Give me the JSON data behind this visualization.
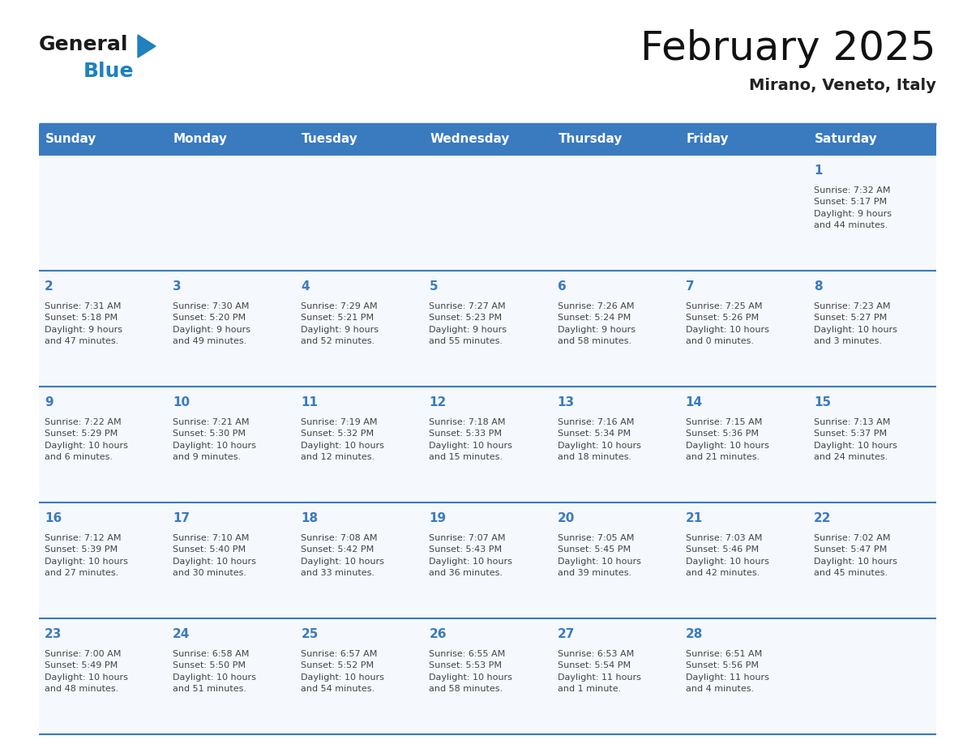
{
  "title": "February 2025",
  "subtitle": "Mirano, Veneto, Italy",
  "header_bg_color": "#3a7abf",
  "header_text_color": "#ffffff",
  "cell_bg_color": "#f5f8fc",
  "day_number_color": "#3a7abf",
  "text_color": "#444444",
  "border_color": "#3a7abf",
  "separator_color": "#3a7abf",
  "days_of_week": [
    "Sunday",
    "Monday",
    "Tuesday",
    "Wednesday",
    "Thursday",
    "Friday",
    "Saturday"
  ],
  "weeks": [
    [
      {
        "day": null,
        "info": null
      },
      {
        "day": null,
        "info": null
      },
      {
        "day": null,
        "info": null
      },
      {
        "day": null,
        "info": null
      },
      {
        "day": null,
        "info": null
      },
      {
        "day": null,
        "info": null
      },
      {
        "day": 1,
        "info": "Sunrise: 7:32 AM\nSunset: 5:17 PM\nDaylight: 9 hours\nand 44 minutes."
      }
    ],
    [
      {
        "day": 2,
        "info": "Sunrise: 7:31 AM\nSunset: 5:18 PM\nDaylight: 9 hours\nand 47 minutes."
      },
      {
        "day": 3,
        "info": "Sunrise: 7:30 AM\nSunset: 5:20 PM\nDaylight: 9 hours\nand 49 minutes."
      },
      {
        "day": 4,
        "info": "Sunrise: 7:29 AM\nSunset: 5:21 PM\nDaylight: 9 hours\nand 52 minutes."
      },
      {
        "day": 5,
        "info": "Sunrise: 7:27 AM\nSunset: 5:23 PM\nDaylight: 9 hours\nand 55 minutes."
      },
      {
        "day": 6,
        "info": "Sunrise: 7:26 AM\nSunset: 5:24 PM\nDaylight: 9 hours\nand 58 minutes."
      },
      {
        "day": 7,
        "info": "Sunrise: 7:25 AM\nSunset: 5:26 PM\nDaylight: 10 hours\nand 0 minutes."
      },
      {
        "day": 8,
        "info": "Sunrise: 7:23 AM\nSunset: 5:27 PM\nDaylight: 10 hours\nand 3 minutes."
      }
    ],
    [
      {
        "day": 9,
        "info": "Sunrise: 7:22 AM\nSunset: 5:29 PM\nDaylight: 10 hours\nand 6 minutes."
      },
      {
        "day": 10,
        "info": "Sunrise: 7:21 AM\nSunset: 5:30 PM\nDaylight: 10 hours\nand 9 minutes."
      },
      {
        "day": 11,
        "info": "Sunrise: 7:19 AM\nSunset: 5:32 PM\nDaylight: 10 hours\nand 12 minutes."
      },
      {
        "day": 12,
        "info": "Sunrise: 7:18 AM\nSunset: 5:33 PM\nDaylight: 10 hours\nand 15 minutes."
      },
      {
        "day": 13,
        "info": "Sunrise: 7:16 AM\nSunset: 5:34 PM\nDaylight: 10 hours\nand 18 minutes."
      },
      {
        "day": 14,
        "info": "Sunrise: 7:15 AM\nSunset: 5:36 PM\nDaylight: 10 hours\nand 21 minutes."
      },
      {
        "day": 15,
        "info": "Sunrise: 7:13 AM\nSunset: 5:37 PM\nDaylight: 10 hours\nand 24 minutes."
      }
    ],
    [
      {
        "day": 16,
        "info": "Sunrise: 7:12 AM\nSunset: 5:39 PM\nDaylight: 10 hours\nand 27 minutes."
      },
      {
        "day": 17,
        "info": "Sunrise: 7:10 AM\nSunset: 5:40 PM\nDaylight: 10 hours\nand 30 minutes."
      },
      {
        "day": 18,
        "info": "Sunrise: 7:08 AM\nSunset: 5:42 PM\nDaylight: 10 hours\nand 33 minutes."
      },
      {
        "day": 19,
        "info": "Sunrise: 7:07 AM\nSunset: 5:43 PM\nDaylight: 10 hours\nand 36 minutes."
      },
      {
        "day": 20,
        "info": "Sunrise: 7:05 AM\nSunset: 5:45 PM\nDaylight: 10 hours\nand 39 minutes."
      },
      {
        "day": 21,
        "info": "Sunrise: 7:03 AM\nSunset: 5:46 PM\nDaylight: 10 hours\nand 42 minutes."
      },
      {
        "day": 22,
        "info": "Sunrise: 7:02 AM\nSunset: 5:47 PM\nDaylight: 10 hours\nand 45 minutes."
      }
    ],
    [
      {
        "day": 23,
        "info": "Sunrise: 7:00 AM\nSunset: 5:49 PM\nDaylight: 10 hours\nand 48 minutes."
      },
      {
        "day": 24,
        "info": "Sunrise: 6:58 AM\nSunset: 5:50 PM\nDaylight: 10 hours\nand 51 minutes."
      },
      {
        "day": 25,
        "info": "Sunrise: 6:57 AM\nSunset: 5:52 PM\nDaylight: 10 hours\nand 54 minutes."
      },
      {
        "day": 26,
        "info": "Sunrise: 6:55 AM\nSunset: 5:53 PM\nDaylight: 10 hours\nand 58 minutes."
      },
      {
        "day": 27,
        "info": "Sunrise: 6:53 AM\nSunset: 5:54 PM\nDaylight: 11 hours\nand 1 minute."
      },
      {
        "day": 28,
        "info": "Sunrise: 6:51 AM\nSunset: 5:56 PM\nDaylight: 11 hours\nand 4 minutes."
      },
      {
        "day": null,
        "info": null
      }
    ]
  ],
  "logo_general_color": "#1a1a1a",
  "logo_blue_color": "#2080c0",
  "logo_triangle_color": "#2080c0",
  "title_fontsize": 36,
  "subtitle_fontsize": 14,
  "header_fontsize": 11,
  "day_num_fontsize": 11,
  "info_fontsize": 8
}
